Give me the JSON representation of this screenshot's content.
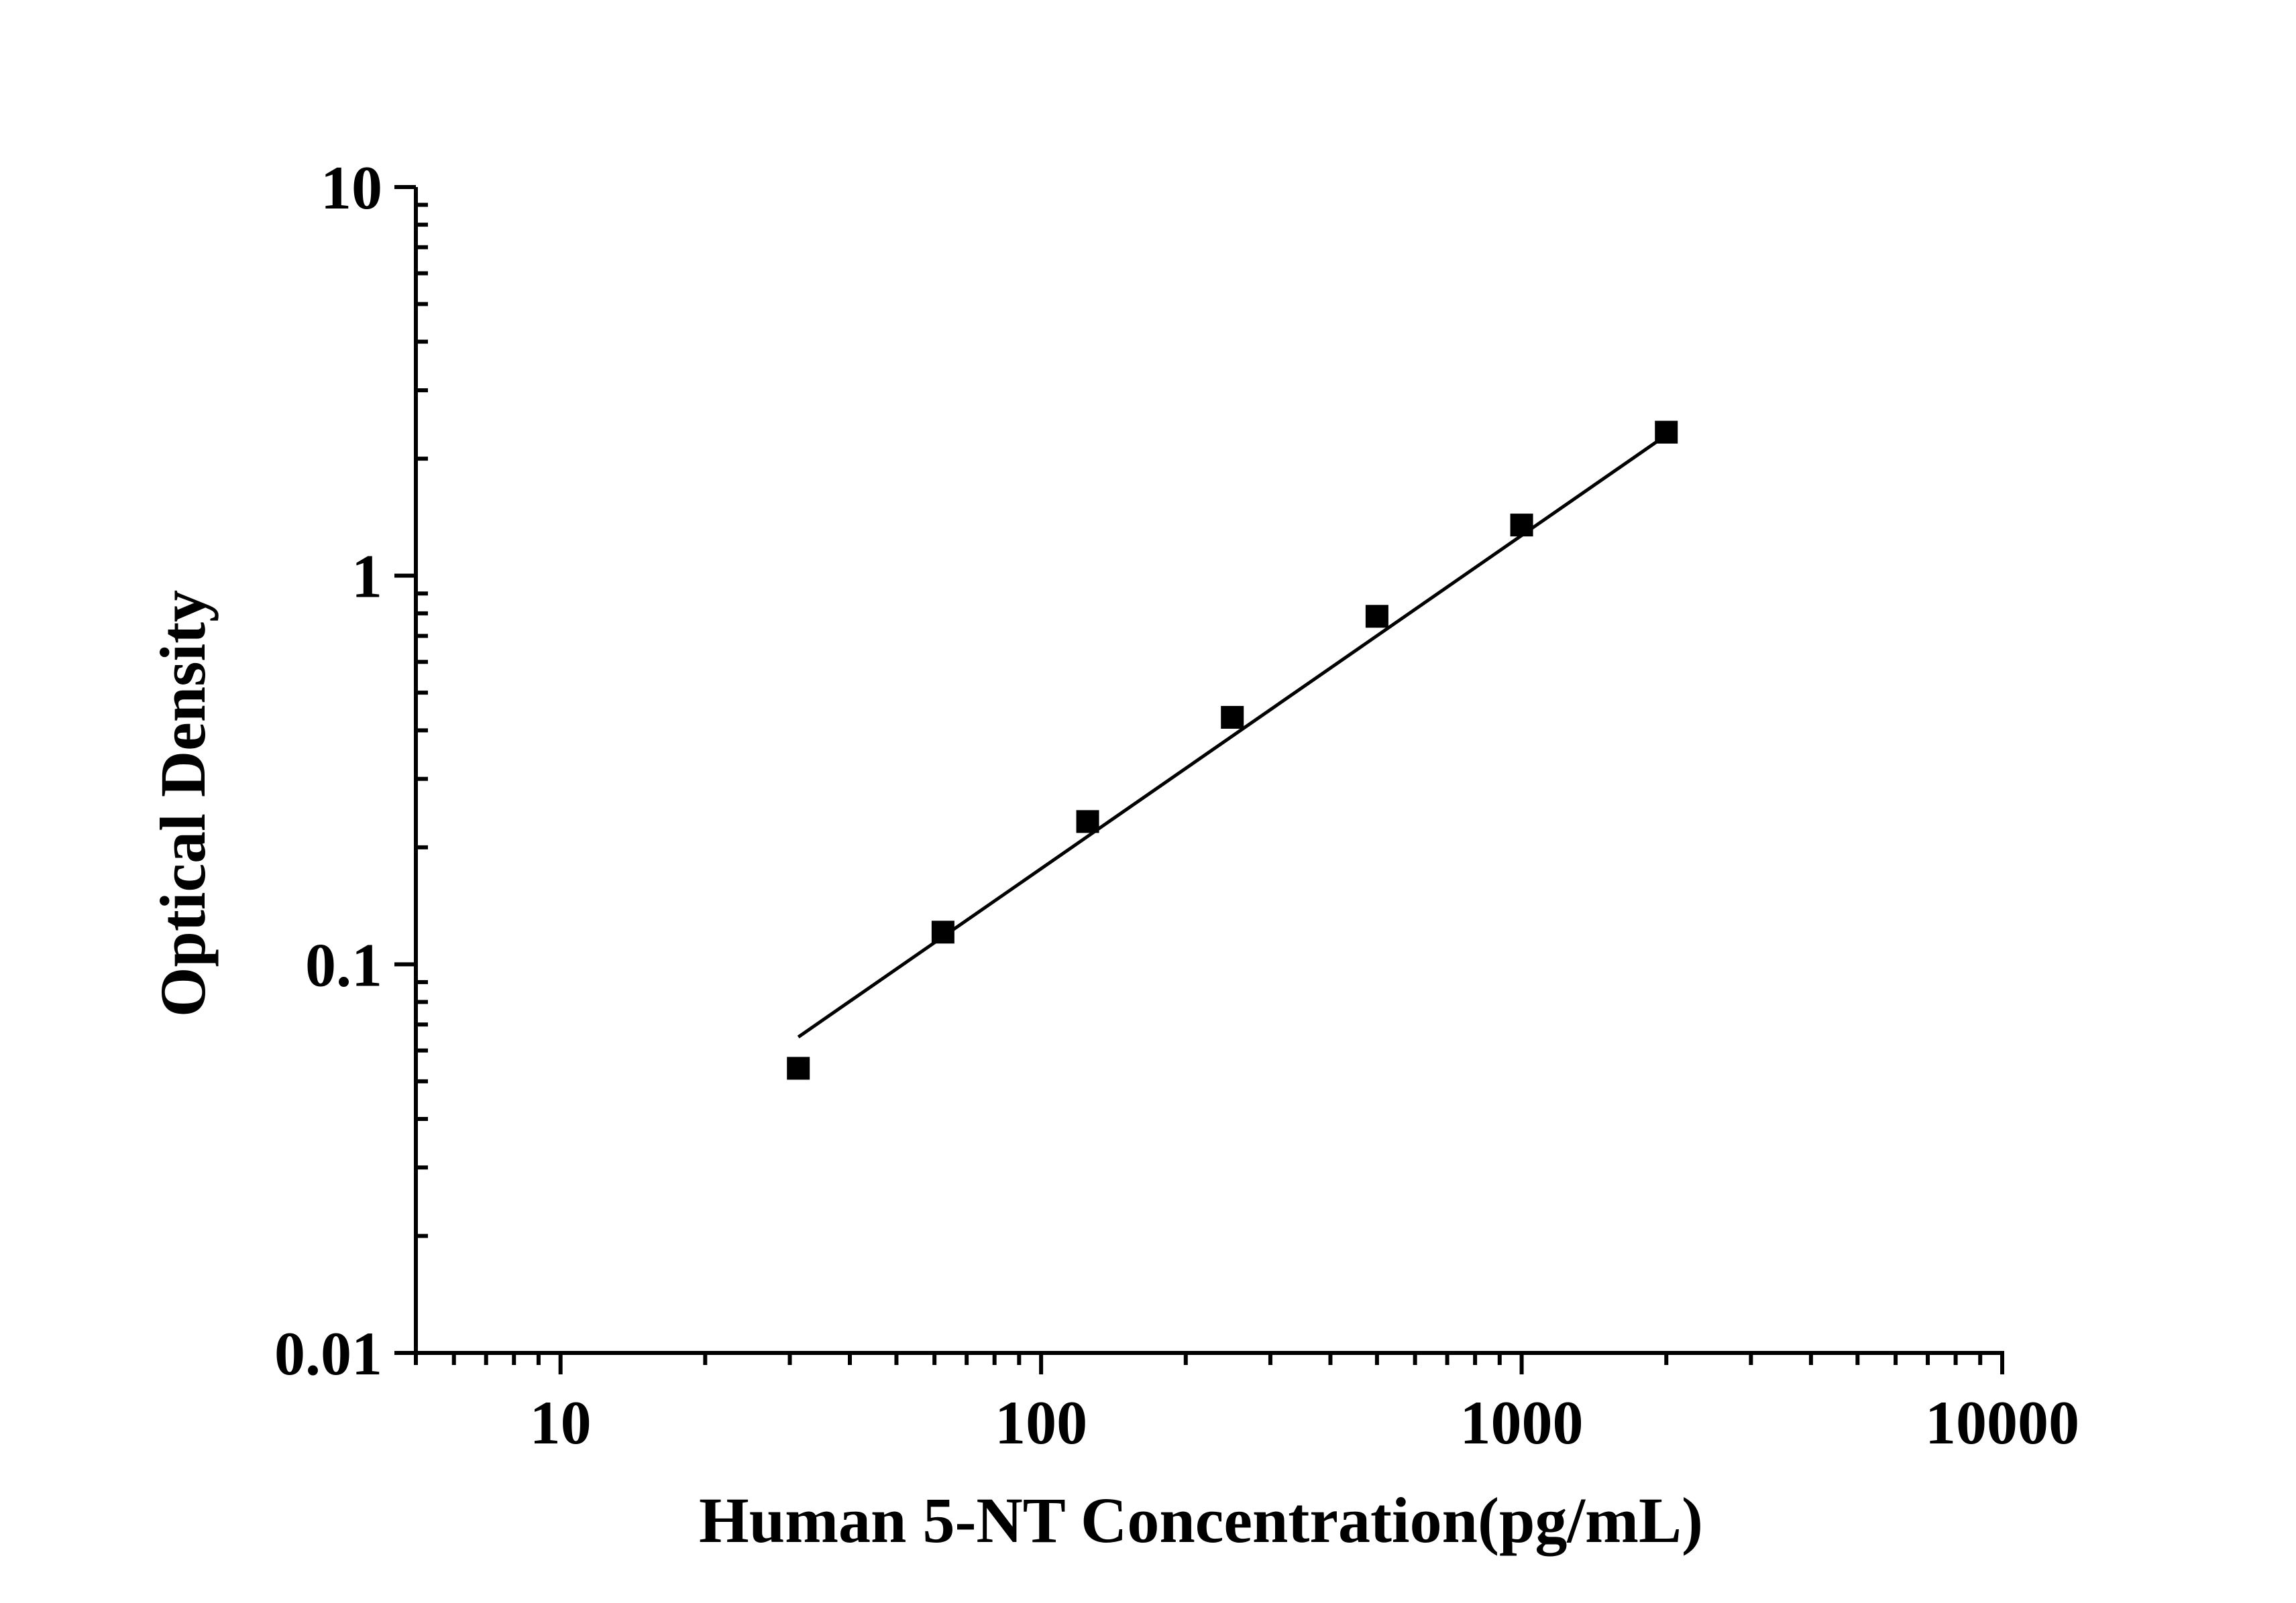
{
  "chart_data": {
    "type": "scatter",
    "title": "",
    "xlabel": "Human 5-NT Concentration(pg/mL)",
    "ylabel": "Optical Density",
    "xscale": "log",
    "yscale": "log",
    "xlim": [
      5,
      10000
    ],
    "ylim": [
      0.01,
      10
    ],
    "xticks": [
      {
        "value": 10,
        "label": "10"
      },
      {
        "value": 100,
        "label": "100"
      },
      {
        "value": 1000,
        "label": "1000"
      },
      {
        "value": 10000,
        "label": "10000"
      }
    ],
    "yticks": [
      {
        "value": 0.01,
        "label": "0.01"
      },
      {
        "value": 0.1,
        "label": "0.1"
      },
      {
        "value": 1,
        "label": "1"
      },
      {
        "value": 10,
        "label": "10"
      }
    ],
    "grid": false,
    "legend": "none",
    "marker": "square",
    "color": "#000000",
    "series": [
      {
        "x": [
          31.25,
          62.5,
          125,
          250,
          500,
          1000,
          2000
        ],
        "y": [
          0.054,
          0.121,
          0.233,
          0.432,
          0.786,
          1.35,
          2.34
        ]
      }
    ],
    "fit": {
      "x": [
        31.25,
        2000
      ],
      "y": [
        0.065,
        2.3
      ]
    }
  }
}
